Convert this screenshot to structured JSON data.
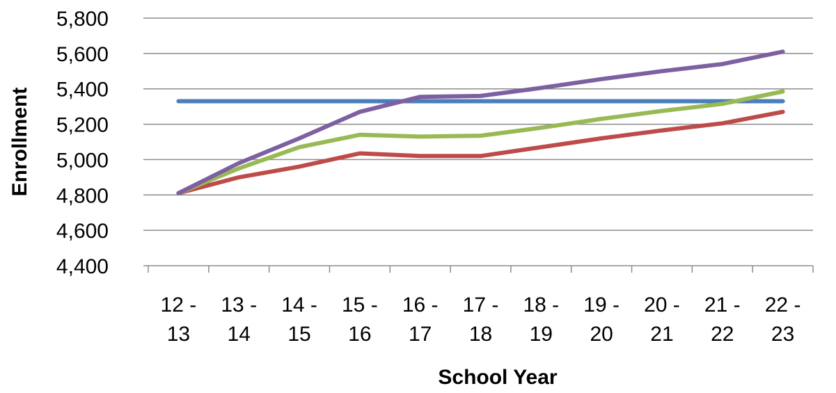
{
  "chart_data": {
    "type": "line",
    "xlabel": "School Year",
    "ylabel": "Enrollment",
    "categories": [
      [
        "12 -",
        "13"
      ],
      [
        "13 -",
        "14"
      ],
      [
        "14 -",
        "15"
      ],
      [
        "15 -",
        "16"
      ],
      [
        "16 -",
        "17"
      ],
      [
        "17 -",
        "18"
      ],
      [
        "18 -",
        "19"
      ],
      [
        "19 -",
        "20"
      ],
      [
        "20 -",
        "21"
      ],
      [
        "21 -",
        "22"
      ],
      [
        "22 -",
        "23"
      ]
    ],
    "ylim": [
      4400,
      5800
    ],
    "yticks": [
      "4,400",
      "4,600",
      "4,800",
      "5,000",
      "5,200",
      "5,400",
      "5,600",
      "5,800"
    ],
    "ytick_values": [
      4400,
      4600,
      4800,
      5000,
      5200,
      5400,
      5600,
      5800
    ],
    "grid": true,
    "legend": "none",
    "series": [
      {
        "color": "#4a7ebb",
        "values": [
          5330,
          5330,
          5330,
          5330,
          5330,
          5330,
          5330,
          5330,
          5330,
          5330,
          5330
        ]
      },
      {
        "color": "#be4b48",
        "values": [
          4810,
          4900,
          4960,
          5035,
          5020,
          5020,
          5070,
          5120,
          5165,
          5205,
          5270
        ]
      },
      {
        "color": "#98b954",
        "values": [
          4810,
          4950,
          5070,
          5140,
          5130,
          5135,
          5180,
          5230,
          5275,
          5315,
          5385
        ]
      },
      {
        "color": "#7d60a0",
        "values": [
          4810,
          4980,
          5120,
          5270,
          5355,
          5360,
          5405,
          5455,
          5500,
          5540,
          5610
        ]
      }
    ]
  }
}
